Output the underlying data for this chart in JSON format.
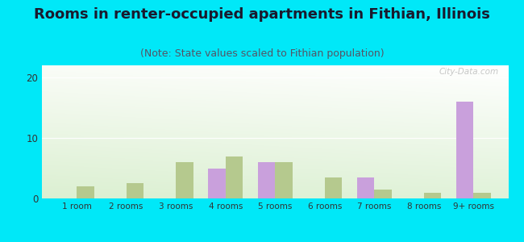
{
  "title": "Rooms in renter-occupied apartments in Fithian, Illinois",
  "subtitle": "(Note: State values scaled to Fithian population)",
  "categories": [
    "1 room",
    "2 rooms",
    "3 rooms",
    "4 rooms",
    "5 rooms",
    "6 rooms",
    "7 rooms",
    "8 rooms",
    "9+ rooms"
  ],
  "fithian_values": [
    0,
    0,
    0,
    5,
    6,
    0,
    3.5,
    0,
    16
  ],
  "illinois_values": [
    2,
    2.5,
    6,
    7,
    6,
    3.5,
    1.5,
    1,
    1
  ],
  "fithian_color": "#c9a0dc",
  "illinois_color": "#b5c98e",
  "background_outer": "#00e8f8",
  "ylim": [
    0,
    22
  ],
  "yticks": [
    0,
    10,
    20
  ],
  "bar_width": 0.35,
  "title_fontsize": 13,
  "subtitle_fontsize": 9,
  "watermark": "City-Data.com"
}
